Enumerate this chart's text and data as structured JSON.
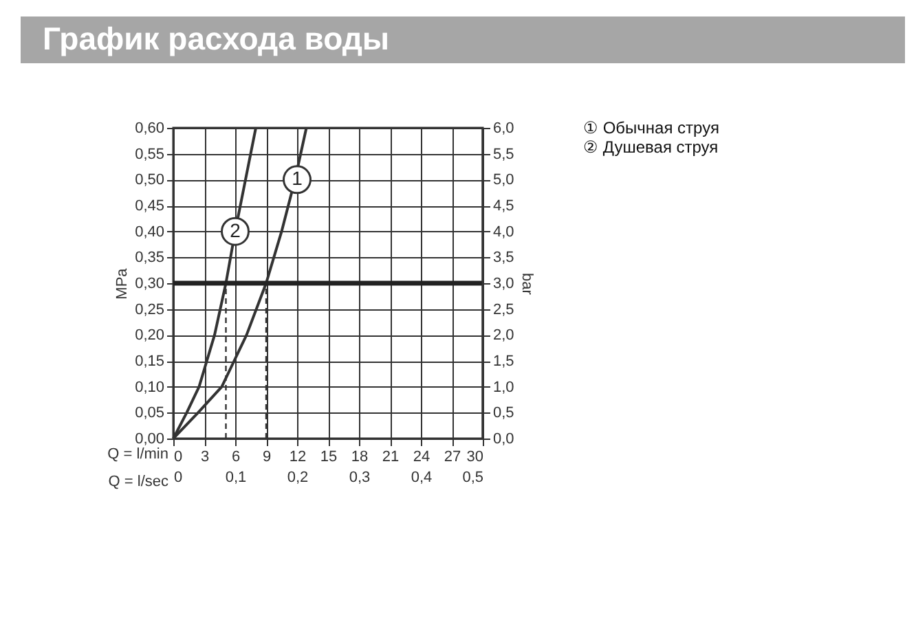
{
  "chart_data": {
    "type": "line",
    "title": "График расхода воды",
    "xlabel": "Q = l/min",
    "x2label": "Q = l/sec",
    "ylabel": "MPa",
    "y2label": "bar",
    "xlim": [
      0,
      30
    ],
    "xticks": [
      0,
      3,
      6,
      9,
      12,
      15,
      18,
      21,
      24,
      27,
      30
    ],
    "x2lim": [
      0,
      0.5
    ],
    "x2ticks": [
      {
        "value": 0,
        "label": "0"
      },
      {
        "value": 0.1,
        "label": "0,1"
      },
      {
        "value": 0.2,
        "label": "0,2"
      },
      {
        "value": 0.3,
        "label": "0,3"
      },
      {
        "value": 0.4,
        "label": "0,4"
      },
      {
        "value": 0.5,
        "label": "0,5"
      }
    ],
    "ylim": [
      0,
      0.6
    ],
    "yticks": [
      {
        "value": 0,
        "label": "0,00"
      },
      {
        "value": 0.05,
        "label": "0,05"
      },
      {
        "value": 0.1,
        "label": "0,10"
      },
      {
        "value": 0.15,
        "label": "0,15"
      },
      {
        "value": 0.2,
        "label": "0,20"
      },
      {
        "value": 0.25,
        "label": "0,25"
      },
      {
        "value": 0.3,
        "label": "0,30"
      },
      {
        "value": 0.35,
        "label": "0,35"
      },
      {
        "value": 0.4,
        "label": "0,40"
      },
      {
        "value": 0.45,
        "label": "0,45"
      },
      {
        "value": 0.5,
        "label": "0,50"
      },
      {
        "value": 0.55,
        "label": "0,55"
      },
      {
        "value": 0.6,
        "label": "0,60"
      }
    ],
    "y2lim": [
      0,
      6
    ],
    "y2ticks": [
      {
        "value": 0,
        "label": "0,0"
      },
      {
        "value": 0.5,
        "label": "0,5"
      },
      {
        "value": 1,
        "label": "1,0"
      },
      {
        "value": 1.5,
        "label": "1,5"
      },
      {
        "value": 2,
        "label": "2,0"
      },
      {
        "value": 2.5,
        "label": "2,5"
      },
      {
        "value": 3,
        "label": "3,0"
      },
      {
        "value": 3.5,
        "label": "3,5"
      },
      {
        "value": 4,
        "label": "4,0"
      },
      {
        "value": 4.5,
        "label": "4,5"
      },
      {
        "value": 5,
        "label": "5,0"
      },
      {
        "value": 5.5,
        "label": "5,5"
      },
      {
        "value": 6,
        "label": "6,0"
      }
    ],
    "grid": true,
    "legend": "top right",
    "marker": "none",
    "line_style": "solid",
    "series": [
      {
        "name": "① Обычная струя",
        "color": "#333333",
        "x": [
          0,
          2.4,
          4.7,
          5.9,
          7.1,
          9.0,
          10.5,
          11.8,
          12.9
        ],
        "values": [
          0,
          0.05,
          0.1,
          0.15,
          0.2,
          0.3,
          0.4,
          0.5,
          0.6
        ]
      },
      {
        "name": "② Душевая струя",
        "color": "#333333",
        "x": [
          0,
          1.3,
          2.5,
          4.0,
          5.1,
          6.0,
          8.0
        ],
        "values": [
          0,
          0.05,
          0.1,
          0.2,
          0.3,
          0.4,
          0.6
        ]
      }
    ],
    "ref_lines": [
      {
        "axis": "y",
        "value": 0.3,
        "color": "#222222",
        "line_style": "solid"
      },
      {
        "axis": "x",
        "value": 5.1,
        "color": "#333333",
        "line_style": "dashed"
      },
      {
        "axis": "x",
        "value": 9.0,
        "color": "#333333",
        "line_style": "dashed"
      }
    ],
    "annotations": [
      {
        "text": "1",
        "x": 12,
        "y": 0.5
      },
      {
        "text": "2",
        "x": 6,
        "y": 0.4
      }
    ]
  }
}
